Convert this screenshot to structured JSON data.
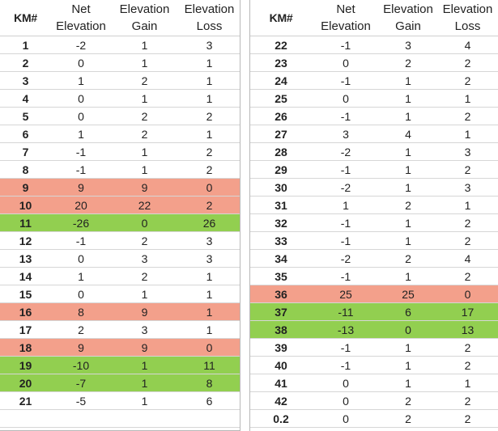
{
  "headers": {
    "km": "KM#",
    "net": [
      "Net",
      "Elevation"
    ],
    "gain": [
      "Elevation",
      "Gain"
    ],
    "loss": [
      "Elevation",
      "Loss"
    ]
  },
  "highlight_colors": {
    "climb": "#f3a08b",
    "descent": "#92cf50"
  },
  "left_rows": [
    {
      "km": "1",
      "net": "-2",
      "gain": "1",
      "loss": "3",
      "hl": ""
    },
    {
      "km": "2",
      "net": "0",
      "gain": "1",
      "loss": "1",
      "hl": ""
    },
    {
      "km": "3",
      "net": "1",
      "gain": "2",
      "loss": "1",
      "hl": ""
    },
    {
      "km": "4",
      "net": "0",
      "gain": "1",
      "loss": "1",
      "hl": ""
    },
    {
      "km": "5",
      "net": "0",
      "gain": "2",
      "loss": "2",
      "hl": ""
    },
    {
      "km": "6",
      "net": "1",
      "gain": "2",
      "loss": "1",
      "hl": ""
    },
    {
      "km": "7",
      "net": "-1",
      "gain": "1",
      "loss": "2",
      "hl": ""
    },
    {
      "km": "8",
      "net": "-1",
      "gain": "1",
      "loss": "2",
      "hl": ""
    },
    {
      "km": "9",
      "net": "9",
      "gain": "9",
      "loss": "0",
      "hl": "red"
    },
    {
      "km": "10",
      "net": "20",
      "gain": "22",
      "loss": "2",
      "hl": "red"
    },
    {
      "km": "11",
      "net": "-26",
      "gain": "0",
      "loss": "26",
      "hl": "green"
    },
    {
      "km": "12",
      "net": "-1",
      "gain": "2",
      "loss": "3",
      "hl": ""
    },
    {
      "km": "13",
      "net": "0",
      "gain": "3",
      "loss": "3",
      "hl": ""
    },
    {
      "km": "14",
      "net": "1",
      "gain": "2",
      "loss": "1",
      "hl": ""
    },
    {
      "km": "15",
      "net": "0",
      "gain": "1",
      "loss": "1",
      "hl": ""
    },
    {
      "km": "16",
      "net": "8",
      "gain": "9",
      "loss": "1",
      "hl": "red"
    },
    {
      "km": "17",
      "net": "2",
      "gain": "3",
      "loss": "1",
      "hl": ""
    },
    {
      "km": "18",
      "net": "9",
      "gain": "9",
      "loss": "0",
      "hl": "red"
    },
    {
      "km": "19",
      "net": "-10",
      "gain": "1",
      "loss": "11",
      "hl": "green"
    },
    {
      "km": "20",
      "net": "-7",
      "gain": "1",
      "loss": "8",
      "hl": "green"
    },
    {
      "km": "21",
      "net": "-5",
      "gain": "1",
      "loss": "6",
      "hl": ""
    },
    {
      "km": "",
      "net": "",
      "gain": "",
      "loss": "",
      "hl": ""
    }
  ],
  "right_rows": [
    {
      "km": "22",
      "net": "-1",
      "gain": "3",
      "loss": "4",
      "hl": ""
    },
    {
      "km": "23",
      "net": "0",
      "gain": "2",
      "loss": "2",
      "hl": ""
    },
    {
      "km": "24",
      "net": "-1",
      "gain": "1",
      "loss": "2",
      "hl": ""
    },
    {
      "km": "25",
      "net": "0",
      "gain": "1",
      "loss": "1",
      "hl": ""
    },
    {
      "km": "26",
      "net": "-1",
      "gain": "1",
      "loss": "2",
      "hl": ""
    },
    {
      "km": "27",
      "net": "3",
      "gain": "4",
      "loss": "1",
      "hl": ""
    },
    {
      "km": "28",
      "net": "-2",
      "gain": "1",
      "loss": "3",
      "hl": ""
    },
    {
      "km": "29",
      "net": "-1",
      "gain": "1",
      "loss": "2",
      "hl": ""
    },
    {
      "km": "30",
      "net": "-2",
      "gain": "1",
      "loss": "3",
      "hl": ""
    },
    {
      "km": "31",
      "net": "1",
      "gain": "2",
      "loss": "1",
      "hl": ""
    },
    {
      "km": "32",
      "net": "-1",
      "gain": "1",
      "loss": "2",
      "hl": ""
    },
    {
      "km": "33",
      "net": "-1",
      "gain": "1",
      "loss": "2",
      "hl": ""
    },
    {
      "km": "34",
      "net": "-2",
      "gain": "2",
      "loss": "4",
      "hl": ""
    },
    {
      "km": "35",
      "net": "-1",
      "gain": "1",
      "loss": "2",
      "hl": ""
    },
    {
      "km": "36",
      "net": "25",
      "gain": "25",
      "loss": "0",
      "hl": "red"
    },
    {
      "km": "37",
      "net": "-11",
      "gain": "6",
      "loss": "17",
      "hl": "green"
    },
    {
      "km": "38",
      "net": "-13",
      "gain": "0",
      "loss": "13",
      "hl": "green"
    },
    {
      "km": "39",
      "net": "-1",
      "gain": "1",
      "loss": "2",
      "hl": ""
    },
    {
      "km": "40",
      "net": "-1",
      "gain": "1",
      "loss": "2",
      "hl": ""
    },
    {
      "km": "41",
      "net": "0",
      "gain": "1",
      "loss": "1",
      "hl": ""
    },
    {
      "km": "42",
      "net": "0",
      "gain": "2",
      "loss": "2",
      "hl": ""
    },
    {
      "km": "0.2",
      "net": "0",
      "gain": "2",
      "loss": "2",
      "hl": ""
    }
  ]
}
